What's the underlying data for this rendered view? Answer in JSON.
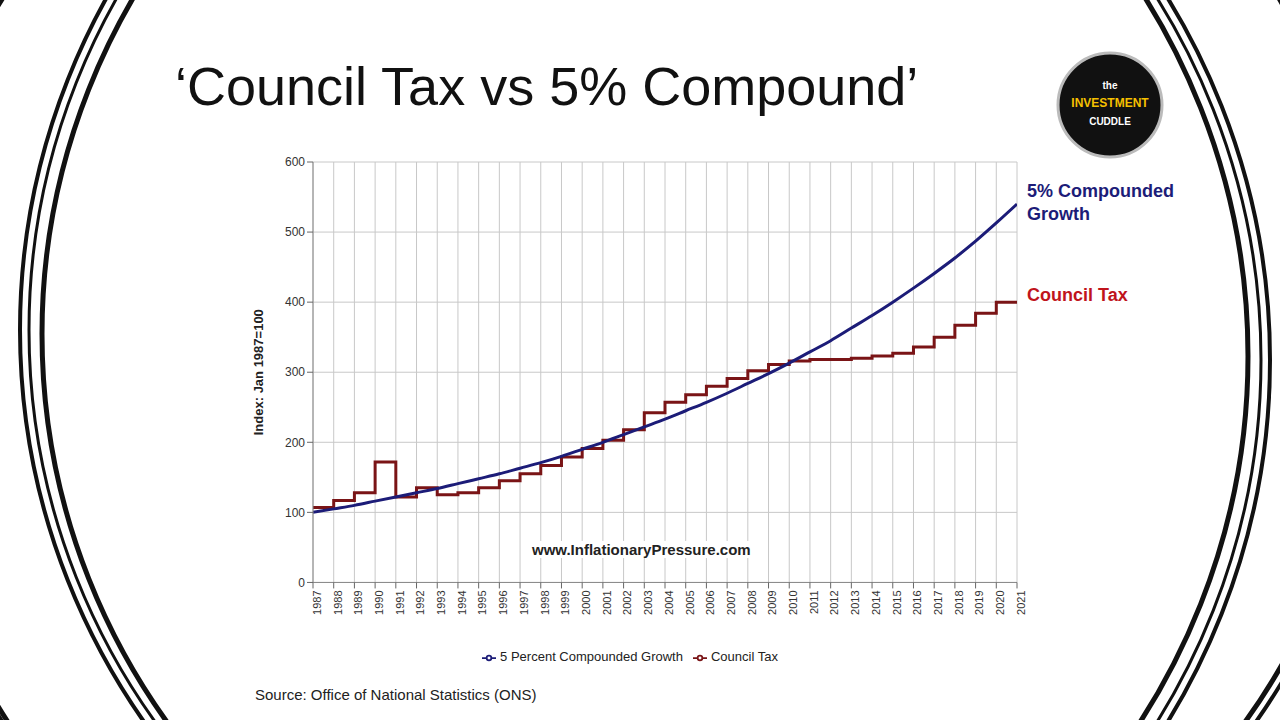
{
  "chart_data": {
    "type": "line",
    "title": "‘Council Tax vs 5% Compound’",
    "logo": [
      "the",
      "INVESTMENT",
      "CUDDLE"
    ],
    "y_label": "Index: Jan 1987=100",
    "watermark": "www.InflationaryPressure.com",
    "source": "Source: Office of National Statistics (ONS)",
    "annotations": [
      {
        "text": "5% Compounded Growth",
        "color": "#1c1c78"
      },
      {
        "text": "Council Tax",
        "color": "#c0141c"
      }
    ],
    "x": [
      1987,
      1988,
      1989,
      1990,
      1991,
      1992,
      1993,
      1994,
      1995,
      1996,
      1997,
      1998,
      1999,
      2000,
      2001,
      2002,
      2003,
      2004,
      2005,
      2006,
      2007,
      2008,
      2009,
      2010,
      2011,
      2012,
      2013,
      2014,
      2015,
      2016,
      2017,
      2018,
      2019,
      2020,
      2021
    ],
    "series": [
      {
        "name": "Council Tax",
        "color": "#7a1416",
        "line_style": "step",
        "values": [
          107,
          117,
          128,
          172,
          122,
          135,
          125,
          128,
          135,
          145,
          155,
          167,
          179,
          191,
          203,
          218,
          242,
          257,
          268,
          280,
          291,
          302,
          311,
          316,
          318,
          318,
          320,
          323,
          327,
          336,
          350,
          367,
          384,
          400,
          400
        ]
      },
      {
        "name": "5 Percent Compounded Growth",
        "color": "#1c1c78",
        "line_style": "solid",
        "values": [
          100,
          105,
          110,
          116,
          122,
          128,
          134,
          141,
          148,
          155,
          163,
          171,
          180,
          190,
          200,
          211,
          222,
          233,
          245,
          257,
          270,
          284,
          298,
          313,
          329,
          345,
          363,
          381,
          400,
          420,
          441,
          463,
          487,
          513,
          540
        ]
      }
    ],
    "xlim": [
      1987,
      2021
    ],
    "xticks": [
      1987,
      1988,
      1989,
      1990,
      1991,
      1992,
      1993,
      1994,
      1995,
      1996,
      1997,
      1998,
      1999,
      2000,
      2001,
      2002,
      2003,
      2004,
      2005,
      2006,
      2007,
      2008,
      2009,
      2010,
      2011,
      2012,
      2013,
      2014,
      2015,
      2016,
      2017,
      2018,
      2019,
      2020,
      2021
    ],
    "ylim": [
      0,
      600
    ],
    "yticks": [
      0,
      100,
      200,
      300,
      400,
      500,
      600
    ],
    "grid": true,
    "legend": "bottom"
  }
}
